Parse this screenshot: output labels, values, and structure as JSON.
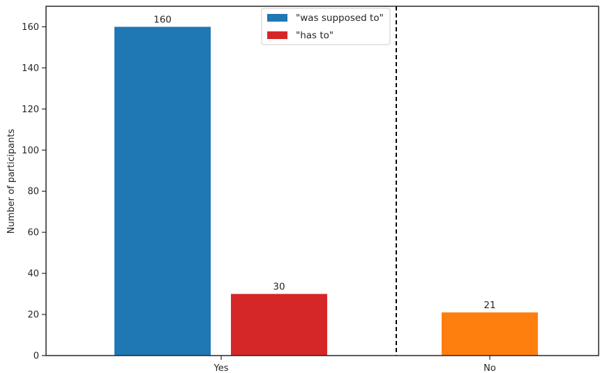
{
  "chart_data": {
    "type": "bar",
    "categories": [
      "Yes",
      "No"
    ],
    "ylabel": "Number of participants",
    "xlabel": "",
    "ylim": [
      0,
      170
    ],
    "yticks": [
      0,
      20,
      40,
      60,
      80,
      100,
      120,
      140,
      160
    ],
    "grid": false,
    "legend_position": "top-center",
    "divider": "dashed vertical line between Yes and No",
    "bars": [
      {
        "category": "Yes",
        "series": "\"was supposed to\"",
        "value": 160,
        "label": "160",
        "color": "#1f77b4"
      },
      {
        "category": "Yes",
        "series": "\"has to\"",
        "value": 30,
        "label": "30",
        "color": "#d62728"
      },
      {
        "category": "No",
        "series": "",
        "value": 21,
        "label": "21",
        "color": "#ff7f0e"
      }
    ],
    "legend": [
      {
        "name": "\"was supposed to\"",
        "color": "#1f77b4"
      },
      {
        "name": "\"has to\"",
        "color": "#d62728"
      }
    ]
  }
}
